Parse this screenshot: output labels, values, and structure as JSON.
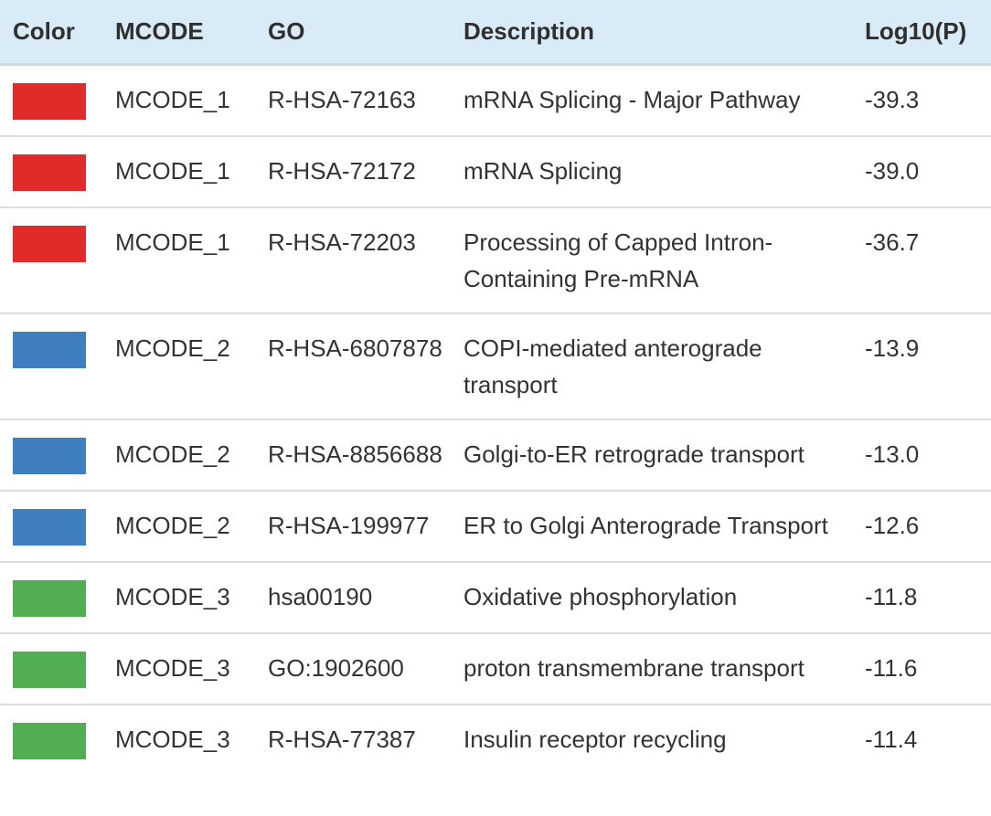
{
  "header": {
    "color": "Color",
    "mcode": "MCODE",
    "go": "GO",
    "description": "Description",
    "log10p": "Log10(P)"
  },
  "colors": {
    "MCODE_1": "#e12b2b",
    "MCODE_2": "#3f7fbf",
    "MCODE_3": "#52ae52",
    "header_bg": "#d9ebf6"
  },
  "rows": [
    {
      "mcode": "MCODE_1",
      "go": "R-HSA-72163",
      "description": "mRNA Splicing - Major Pathway",
      "log10p": "-39.3"
    },
    {
      "mcode": "MCODE_1",
      "go": "R-HSA-72172",
      "description": "mRNA Splicing",
      "log10p": "-39.0"
    },
    {
      "mcode": "MCODE_1",
      "go": "R-HSA-72203",
      "description": "Processing of Capped Intron-Containing Pre-mRNA",
      "log10p": "-36.7"
    },
    {
      "mcode": "MCODE_2",
      "go": "R-HSA-6807878",
      "description": "COPI-mediated anterograde transport",
      "log10p": "-13.9"
    },
    {
      "mcode": "MCODE_2",
      "go": "R-HSA-8856688",
      "description": "Golgi-to-ER retrograde transport",
      "log10p": "-13.0"
    },
    {
      "mcode": "MCODE_2",
      "go": "R-HSA-199977",
      "description": "ER to Golgi Anterograde Transport",
      "log10p": "-12.6"
    },
    {
      "mcode": "MCODE_3",
      "go": "hsa00190",
      "description": "Oxidative phosphorylation",
      "log10p": "-11.8"
    },
    {
      "mcode": "MCODE_3",
      "go": "GO:1902600",
      "description": "proton transmembrane transport",
      "log10p": "-11.6"
    },
    {
      "mcode": "MCODE_3",
      "go": "R-HSA-77387",
      "description": "Insulin receptor recycling",
      "log10p": "-11.4"
    }
  ]
}
